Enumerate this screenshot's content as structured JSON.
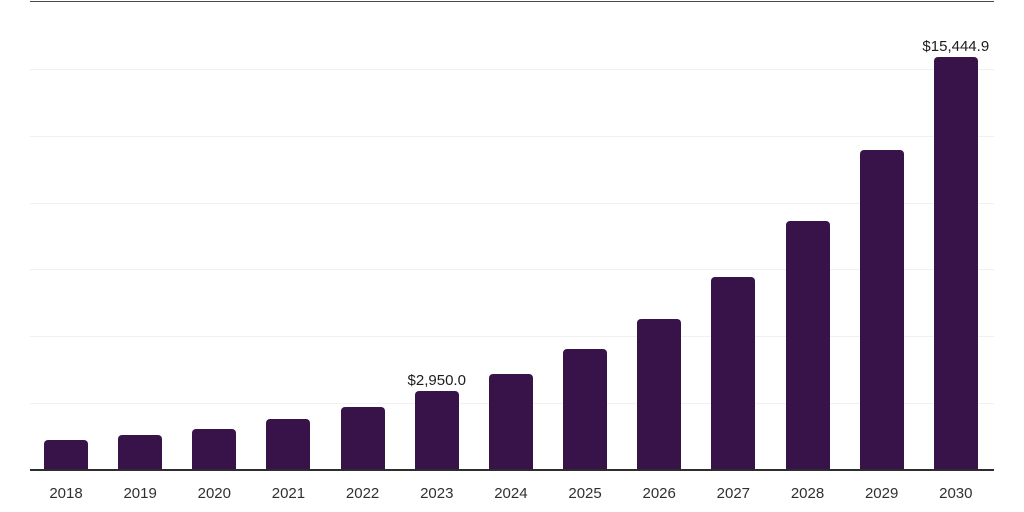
{
  "chart_data": {
    "type": "bar",
    "title": "",
    "xlabel": "",
    "ylabel": "",
    "categories": [
      "2018",
      "2019",
      "2020",
      "2021",
      "2022",
      "2023",
      "2024",
      "2025",
      "2026",
      "2027",
      "2028",
      "2029",
      "2030"
    ],
    "values": [
      1125,
      1300,
      1550,
      1925,
      2340,
      2950.0,
      3590,
      4510,
      5660,
      7220,
      9310,
      11980,
      15444.9
    ],
    "labeled_points": [
      {
        "category": "2023",
        "label": "$2,950.0"
      },
      {
        "category": "2030",
        "label": "$15,444.9"
      }
    ],
    "ylim": [
      0,
      17500
    ],
    "gridline_step": 2500,
    "grid": "horizontal",
    "legend": "none",
    "y_axis_ticks_visible": false
  },
  "colors": {
    "bar": "#371349",
    "background": "#ffffff",
    "gridline": "#f1f1f1",
    "plot_top_border": "#4a4a4a",
    "x_axis_line": "#2d2d2d",
    "value_label_text": "#1c1c1c",
    "tick_label_text": "#303030"
  }
}
